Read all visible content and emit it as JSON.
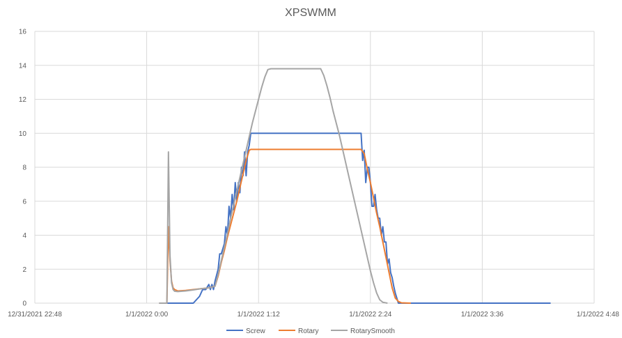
{
  "chart_data": {
    "type": "line",
    "title": "XPSWMM",
    "xlabel": "",
    "ylabel": "",
    "x_ticks": [
      "12/31/2021 22:48",
      "1/1/2022 0:00",
      "1/1/2022 1:12",
      "1/1/2022 2:24",
      "1/1/2022 3:36",
      "1/1/2022 4:48"
    ],
    "x_tick_minutes": [
      -72,
      0,
      72,
      144,
      216,
      288
    ],
    "x_unit": "minutes from 1/1/2022 0:00",
    "xlim": [
      -72,
      288
    ],
    "ylim": [
      0,
      16
    ],
    "y_ticks": [
      0,
      2,
      4,
      6,
      8,
      10,
      12,
      14,
      16
    ],
    "grid": true,
    "legend_position": "bottom",
    "series": [
      {
        "name": "Screw",
        "color": "#4472c4",
        "points": [
          [
            8,
            0
          ],
          [
            30,
            0
          ],
          [
            32,
            0.2
          ],
          [
            34,
            0.4
          ],
          [
            36,
            0.8
          ],
          [
            38,
            0.8
          ],
          [
            40,
            1.1
          ],
          [
            41,
            0.8
          ],
          [
            42,
            1.1
          ],
          [
            43,
            0.8
          ],
          [
            44,
            1.3
          ],
          [
            46,
            2.0
          ],
          [
            47,
            2.9
          ],
          [
            48,
            2.9
          ],
          [
            50,
            3.5
          ],
          [
            51,
            4.5
          ],
          [
            52,
            4.0
          ],
          [
            53,
            5.7
          ],
          [
            54,
            5.0
          ],
          [
            55,
            6.4
          ],
          [
            56,
            5.5
          ],
          [
            57,
            7.1
          ],
          [
            58,
            6.0
          ],
          [
            59,
            7.1
          ],
          [
            60,
            6.5
          ],
          [
            61,
            8.0
          ],
          [
            62,
            7.5
          ],
          [
            63,
            8.9
          ],
          [
            64,
            7.5
          ],
          [
            65,
            8.9
          ],
          [
            66,
            9.3
          ],
          [
            67,
            10.0
          ],
          [
            79,
            10.0
          ],
          [
            100,
            10.0
          ],
          [
            120,
            10.0
          ],
          [
            135,
            10.0
          ],
          [
            138,
            10.0
          ],
          [
            139,
            8.4
          ],
          [
            140,
            9.0
          ],
          [
            141,
            7.1
          ],
          [
            142,
            8.0
          ],
          [
            143,
            8.0
          ],
          [
            144,
            7.1
          ],
          [
            145,
            5.7
          ],
          [
            146,
            5.7
          ],
          [
            147,
            6.4
          ],
          [
            148,
            5.5
          ],
          [
            149,
            5.0
          ],
          [
            150,
            5.0
          ],
          [
            151,
            4.0
          ],
          [
            152,
            4.5
          ],
          [
            153,
            3.6
          ],
          [
            154,
            3.6
          ],
          [
            155,
            2.3
          ],
          [
            156,
            2.6
          ],
          [
            157,
            1.8
          ],
          [
            158,
            1.5
          ],
          [
            159,
            1.0
          ],
          [
            160,
            0.6
          ],
          [
            161,
            0.3
          ],
          [
            162,
            0
          ],
          [
            200,
            0
          ],
          [
            260,
            0
          ]
        ]
      },
      {
        "name": "Rotary",
        "color": "#ed7d31",
        "points": [
          [
            8,
            0
          ],
          [
            13,
            0
          ],
          [
            14,
            4.5
          ],
          [
            15,
            2.5
          ],
          [
            16,
            1.3
          ],
          [
            17,
            0.9
          ],
          [
            18,
            0.8
          ],
          [
            20,
            0.72
          ],
          [
            25,
            0.75
          ],
          [
            30,
            0.8
          ],
          [
            35,
            0.85
          ],
          [
            40,
            0.9
          ],
          [
            44,
            1.0
          ],
          [
            46,
            1.6
          ],
          [
            48,
            2.4
          ],
          [
            50,
            3.1
          ],
          [
            52,
            3.9
          ],
          [
            54,
            4.6
          ],
          [
            56,
            5.3
          ],
          [
            58,
            6.0
          ],
          [
            60,
            6.8
          ],
          [
            62,
            7.6
          ],
          [
            64,
            8.4
          ],
          [
            66,
            9.0
          ],
          [
            67,
            9.05
          ],
          [
            100,
            9.05
          ],
          [
            138,
            9.05
          ],
          [
            140,
            8.8
          ],
          [
            142,
            7.9
          ],
          [
            144,
            7.1
          ],
          [
            146,
            6.2
          ],
          [
            148,
            5.3
          ],
          [
            150,
            4.5
          ],
          [
            152,
            3.6
          ],
          [
            154,
            2.7
          ],
          [
            156,
            1.8
          ],
          [
            158,
            0.9
          ],
          [
            160,
            0.3
          ],
          [
            162,
            0.1
          ],
          [
            164,
            0.02
          ],
          [
            170,
            0
          ]
        ]
      },
      {
        "name": "RotarySmooth",
        "color": "#a5a5a5",
        "points": [
          [
            8,
            0
          ],
          [
            13,
            0
          ],
          [
            14,
            8.9
          ],
          [
            15,
            2.8
          ],
          [
            16,
            1.2
          ],
          [
            17,
            0.8
          ],
          [
            18,
            0.7
          ],
          [
            20,
            0.68
          ],
          [
            25,
            0.72
          ],
          [
            30,
            0.78
          ],
          [
            35,
            0.85
          ],
          [
            40,
            0.9
          ],
          [
            44,
            1.0
          ],
          [
            46,
            1.7
          ],
          [
            48,
            2.5
          ],
          [
            50,
            3.3
          ],
          [
            52,
            4.1
          ],
          [
            54,
            5.0
          ],
          [
            56,
            5.8
          ],
          [
            58,
            6.6
          ],
          [
            60,
            7.4
          ],
          [
            62,
            8.2
          ],
          [
            64,
            9.0
          ],
          [
            66,
            9.8
          ],
          [
            68,
            10.6
          ],
          [
            70,
            11.3
          ],
          [
            72,
            12.0
          ],
          [
            74,
            12.7
          ],
          [
            76,
            13.3
          ],
          [
            78,
            13.75
          ],
          [
            80,
            13.8
          ],
          [
            100,
            13.8
          ],
          [
            112,
            13.8
          ],
          [
            114,
            13.4
          ],
          [
            116,
            12.8
          ],
          [
            118,
            12.1
          ],
          [
            120,
            11.3
          ],
          [
            122,
            10.6
          ],
          [
            124,
            9.9
          ],
          [
            126,
            9.1
          ],
          [
            128,
            8.3
          ],
          [
            130,
            7.5
          ],
          [
            132,
            6.7
          ],
          [
            134,
            5.9
          ],
          [
            136,
            5.1
          ],
          [
            138,
            4.3
          ],
          [
            140,
            3.5
          ],
          [
            142,
            2.7
          ],
          [
            144,
            1.9
          ],
          [
            146,
            1.2
          ],
          [
            148,
            0.6
          ],
          [
            150,
            0.2
          ],
          [
            152,
            0.05
          ],
          [
            155,
            0
          ]
        ]
      }
    ]
  }
}
